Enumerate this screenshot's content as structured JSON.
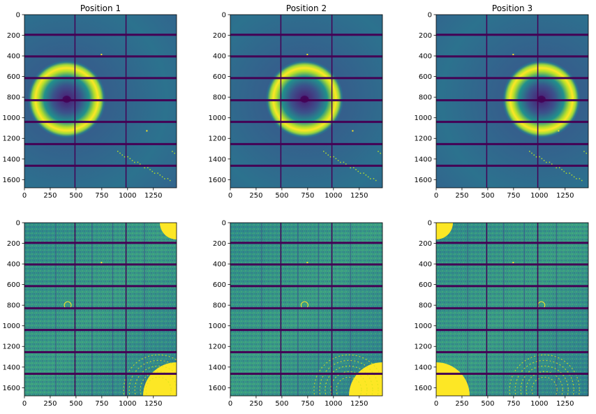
{
  "figure": {
    "colormap": "viridis",
    "background": "#ffffff",
    "frame_color": "#000000",
    "gap_color": "#440154"
  },
  "chart_data": [
    {
      "type": "heatmap",
      "title": "Position 1",
      "row": "top",
      "variant": "ring",
      "ring_center": [
        410,
        820
      ],
      "xlim": [
        0,
        1475
      ],
      "ylim": [
        1679,
        0
      ],
      "xticks": [
        0,
        250,
        500,
        750,
        1000,
        1250
      ],
      "yticks": [
        0,
        200,
        400,
        600,
        800,
        1000,
        1200,
        1400,
        1600
      ],
      "xtick_labels": [
        "0",
        "250",
        "500",
        "750",
        "1000",
        "1250"
      ],
      "ytick_labels": [
        "0",
        "200",
        "400",
        "600",
        "800",
        "1000",
        "1200",
        "1400",
        "1600"
      ]
    },
    {
      "type": "heatmap",
      "title": "Position 2",
      "row": "top",
      "variant": "ring",
      "ring_center": [
        720,
        820
      ],
      "xlim": [
        0,
        1475
      ],
      "ylim": [
        1679,
        0
      ],
      "xticks": [
        0,
        250,
        500,
        750,
        1000,
        1250
      ],
      "yticks": [
        0,
        200,
        400,
        600,
        800,
        1000,
        1200,
        1400,
        1600
      ],
      "xtick_labels": [
        "0",
        "250",
        "500",
        "750",
        "1000",
        "1250"
      ],
      "ytick_labels": [
        "0",
        "200",
        "400",
        "600",
        "800",
        "1000",
        "1200",
        "1400",
        "1600"
      ]
    },
    {
      "type": "heatmap",
      "title": "Position 3",
      "row": "top",
      "variant": "ring",
      "ring_center": [
        1020,
        820
      ],
      "xlim": [
        0,
        1475
      ],
      "ylim": [
        1679,
        0
      ],
      "xticks": [
        0,
        250,
        500,
        750,
        1000,
        1250
      ],
      "yticks": [
        0,
        200,
        400,
        600,
        800,
        1000,
        1200,
        1400,
        1600
      ],
      "xtick_labels": [
        "0",
        "250",
        "500",
        "750",
        "1000",
        "1250"
      ],
      "ytick_labels": [
        "0",
        "200",
        "400",
        "600",
        "800",
        "1000",
        "1200",
        "1400",
        "1600"
      ]
    },
    {
      "type": "heatmap",
      "title": "",
      "row": "bottom",
      "variant": "noise",
      "hot_corners": [
        "top-right",
        "bottom-right"
      ],
      "xlim": [
        0,
        1475
      ],
      "ylim": [
        1679,
        0
      ],
      "xticks": [
        0,
        250,
        500,
        750,
        1000,
        1250
      ],
      "yticks": [
        0,
        200,
        400,
        600,
        800,
        1000,
        1200,
        1400,
        1600
      ],
      "xtick_labels": [
        "0",
        "250",
        "500",
        "750",
        "1000",
        "1250"
      ],
      "ytick_labels": [
        "0",
        "200",
        "400",
        "600",
        "800",
        "1000",
        "1200",
        "1400",
        "1600"
      ]
    },
    {
      "type": "heatmap",
      "title": "",
      "row": "bottom",
      "variant": "noise",
      "hot_corners": [
        "bottom-right"
      ],
      "xlim": [
        0,
        1475
      ],
      "ylim": [
        1679,
        0
      ],
      "xticks": [
        0,
        250,
        500,
        750,
        1000,
        1250
      ],
      "yticks": [
        0,
        200,
        400,
        600,
        800,
        1000,
        1200,
        1400,
        1600
      ],
      "xtick_labels": [
        "0",
        "250",
        "500",
        "750",
        "1000",
        "1250"
      ],
      "ytick_labels": [
        "0",
        "200",
        "400",
        "600",
        "800",
        "1000",
        "1200",
        "1400",
        "1600"
      ]
    },
    {
      "type": "heatmap",
      "title": "",
      "row": "bottom",
      "variant": "noise",
      "hot_corners": [
        "top-left",
        "bottom-left"
      ],
      "xlim": [
        0,
        1475
      ],
      "ylim": [
        1679,
        0
      ],
      "xticks": [
        0,
        250,
        500,
        750,
        1000,
        1250
      ],
      "yticks": [
        0,
        200,
        400,
        600,
        800,
        1000,
        1200,
        1400,
        1600
      ],
      "xtick_labels": [
        "0",
        "250",
        "500",
        "750",
        "1000",
        "1250"
      ],
      "ytick_labels": [
        "0",
        "200",
        "400",
        "600",
        "800",
        "1000",
        "1200",
        "1400",
        "1600"
      ]
    }
  ],
  "detector_gaps": {
    "horizontal_rows": [
      195,
      405,
      615,
      830,
      1040,
      1255,
      1465
    ],
    "vertical_cols": [
      490,
      985
    ]
  }
}
